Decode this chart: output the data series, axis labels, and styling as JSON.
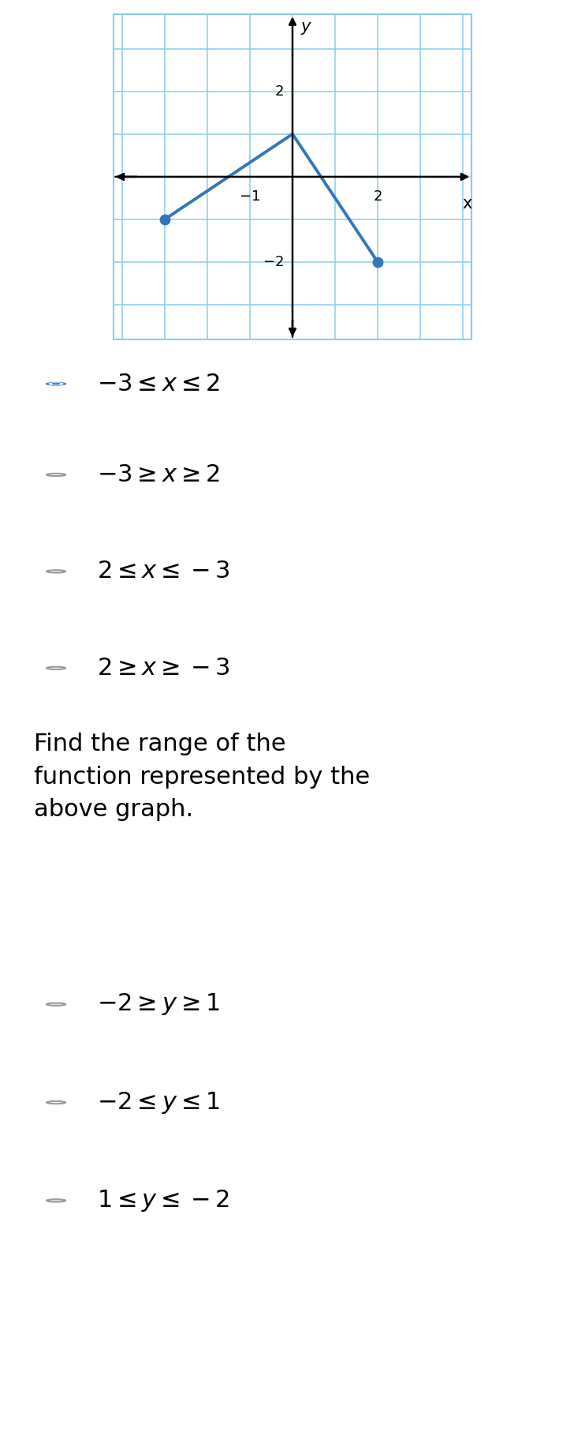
{
  "graph": {
    "xlim": [
      -4.2,
      4.2
    ],
    "ylim": [
      -3.8,
      3.8
    ],
    "xlabel": "x",
    "ylabel": "y",
    "grid_color": "#87CEEB",
    "line_color": "#3377BB",
    "line_width": 2.8,
    "points": [
      [
        -3,
        -1
      ],
      [
        0,
        1
      ],
      [
        2,
        -2
      ]
    ],
    "closed_endpoints": [
      [
        -3,
        -1
      ],
      [
        2,
        -2
      ]
    ]
  },
  "bg_color": "#ffffff",
  "yellow_bg": "#FAFAD2",
  "radio_color": "#4488CC",
  "radio_empty_color": "#999999",
  "q1_options": [
    {
      "text": "$-3 \\leq x \\leq 2$",
      "selected": true
    },
    {
      "text": "$-3 \\geq x \\geq 2$",
      "selected": false
    },
    {
      "text": "$2 \\leq x \\leq -3$",
      "selected": false
    },
    {
      "text": "$2 \\geq x \\geq -3$",
      "selected": false
    }
  ],
  "q2_text": "Find the range of the\nfunction represented by the\nabove graph.",
  "q2_options": [
    {
      "text": "$-2 \\geq y \\geq 1$",
      "selected": false
    },
    {
      "text": "$-2 \\leq y \\leq 1$",
      "selected": false
    },
    {
      "text": "$1 \\leq y \\leq -2$",
      "selected": false
    }
  ],
  "text_fontsize": 22,
  "label_fontsize": 15
}
